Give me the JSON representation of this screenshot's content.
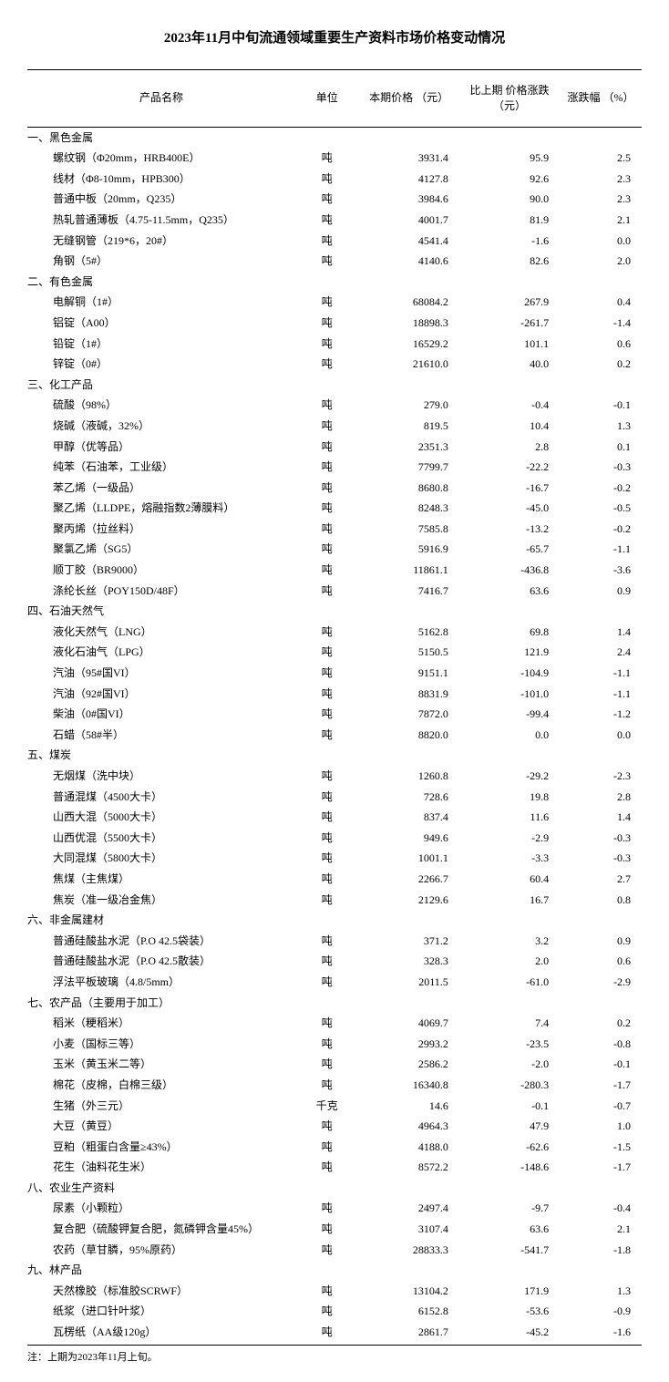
{
  "title": "2023年11月中旬流通领域重要生产资料市场价格变动情况",
  "headers": {
    "name": "产品名称",
    "unit": "单位",
    "price": "本期价格\n（元）",
    "change": "比上期\n价格涨跌\n（元）",
    "pct": "涨跌幅\n（%）"
  },
  "footnote": "注：上期为2023年11月上旬。",
  "sections": [
    {
      "title": "一、黑色金属",
      "rows": [
        {
          "name": "螺纹钢（Φ20mm，HRB400E）",
          "unit": "吨",
          "price": "3931.4",
          "change": "95.9",
          "pct": "2.5"
        },
        {
          "name": "线材（Φ8-10mm，HPB300）",
          "unit": "吨",
          "price": "4127.8",
          "change": "92.6",
          "pct": "2.3"
        },
        {
          "name": "普通中板（20mm，Q235）",
          "unit": "吨",
          "price": "3984.6",
          "change": "90.0",
          "pct": "2.3"
        },
        {
          "name": "热轧普通薄板（4.75-11.5mm，Q235）",
          "unit": "吨",
          "price": "4001.7",
          "change": "81.9",
          "pct": "2.1"
        },
        {
          "name": "无缝钢管（219*6，20#）",
          "unit": "吨",
          "price": "4541.4",
          "change": "-1.6",
          "pct": "0.0"
        },
        {
          "name": "角钢（5#）",
          "unit": "吨",
          "price": "4140.6",
          "change": "82.6",
          "pct": "2.0"
        }
      ]
    },
    {
      "title": "二、有色金属",
      "rows": [
        {
          "name": "电解铜（1#）",
          "unit": "吨",
          "price": "68084.2",
          "change": "267.9",
          "pct": "0.4"
        },
        {
          "name": "铝锭（A00）",
          "unit": "吨",
          "price": "18898.3",
          "change": "-261.7",
          "pct": "-1.4"
        },
        {
          "name": "铅锭（1#）",
          "unit": "吨",
          "price": "16529.2",
          "change": "101.1",
          "pct": "0.6"
        },
        {
          "name": "锌锭（0#）",
          "unit": "吨",
          "price": "21610.0",
          "change": "40.0",
          "pct": "0.2"
        }
      ]
    },
    {
      "title": "三、化工产品",
      "rows": [
        {
          "name": "硫酸（98%）",
          "unit": "吨",
          "price": "279.0",
          "change": "-0.4",
          "pct": "-0.1"
        },
        {
          "name": "烧碱（液碱，32%）",
          "unit": "吨",
          "price": "819.5",
          "change": "10.4",
          "pct": "1.3"
        },
        {
          "name": "甲醇（优等品）",
          "unit": "吨",
          "price": "2351.3",
          "change": "2.8",
          "pct": "0.1"
        },
        {
          "name": "纯苯（石油苯，工业级）",
          "unit": "吨",
          "price": "7799.7",
          "change": "-22.2",
          "pct": "-0.3"
        },
        {
          "name": "苯乙烯（一级品）",
          "unit": "吨",
          "price": "8680.8",
          "change": "-16.7",
          "pct": "-0.2"
        },
        {
          "name": "聚乙烯（LLDPE，熔融指数2薄膜料）",
          "unit": "吨",
          "price": "8248.3",
          "change": "-45.0",
          "pct": "-0.5"
        },
        {
          "name": "聚丙烯（拉丝料）",
          "unit": "吨",
          "price": "7585.8",
          "change": "-13.2",
          "pct": "-0.2"
        },
        {
          "name": "聚氯乙烯（SG5）",
          "unit": "吨",
          "price": "5916.9",
          "change": "-65.7",
          "pct": "-1.1"
        },
        {
          "name": "顺丁胶（BR9000）",
          "unit": "吨",
          "price": "11861.1",
          "change": "-436.8",
          "pct": "-3.6"
        },
        {
          "name": "涤纶长丝（POY150D/48F）",
          "unit": "吨",
          "price": "7416.7",
          "change": "63.6",
          "pct": "0.9"
        }
      ]
    },
    {
      "title": "四、石油天然气",
      "rows": [
        {
          "name": "液化天然气（LNG）",
          "unit": "吨",
          "price": "5162.8",
          "change": "69.8",
          "pct": "1.4"
        },
        {
          "name": "液化石油气（LPG）",
          "unit": "吨",
          "price": "5150.5",
          "change": "121.9",
          "pct": "2.4"
        },
        {
          "name": "汽油（95#国VI）",
          "unit": "吨",
          "price": "9151.1",
          "change": "-104.9",
          "pct": "-1.1"
        },
        {
          "name": "汽油（92#国VI）",
          "unit": "吨",
          "price": "8831.9",
          "change": "-101.0",
          "pct": "-1.1"
        },
        {
          "name": "柴油（0#国VI）",
          "unit": "吨",
          "price": "7872.0",
          "change": "-99.4",
          "pct": "-1.2"
        },
        {
          "name": "石蜡（58#半）",
          "unit": "吨",
          "price": "8820.0",
          "change": "0.0",
          "pct": "0.0"
        }
      ]
    },
    {
      "title": "五、煤炭",
      "rows": [
        {
          "name": "无烟煤（洗中块）",
          "unit": "吨",
          "price": "1260.8",
          "change": "-29.2",
          "pct": "-2.3"
        },
        {
          "name": "普通混煤（4500大卡）",
          "unit": "吨",
          "price": "728.6",
          "change": "19.8",
          "pct": "2.8"
        },
        {
          "name": "山西大混（5000大卡）",
          "unit": "吨",
          "price": "837.4",
          "change": "11.6",
          "pct": "1.4"
        },
        {
          "name": "山西优混（5500大卡）",
          "unit": "吨",
          "price": "949.6",
          "change": "-2.9",
          "pct": "-0.3"
        },
        {
          "name": "大同混煤（5800大卡）",
          "unit": "吨",
          "price": "1001.1",
          "change": "-3.3",
          "pct": "-0.3"
        },
        {
          "name": "焦煤（主焦煤）",
          "unit": "吨",
          "price": "2266.7",
          "change": "60.4",
          "pct": "2.7"
        },
        {
          "name": "焦炭（准一级冶金焦）",
          "unit": "吨",
          "price": "2129.6",
          "change": "16.7",
          "pct": "0.8"
        }
      ]
    },
    {
      "title": "六、非金属建材",
      "rows": [
        {
          "name": "普通硅酸盐水泥（P.O 42.5袋装）",
          "unit": "吨",
          "price": "371.2",
          "change": "3.2",
          "pct": "0.9"
        },
        {
          "name": "普通硅酸盐水泥（P.O 42.5散装）",
          "unit": "吨",
          "price": "328.3",
          "change": "2.0",
          "pct": "0.6"
        },
        {
          "name": "浮法平板玻璃（4.8/5mm）",
          "unit": "吨",
          "price": "2011.5",
          "change": "-61.0",
          "pct": "-2.9"
        }
      ]
    },
    {
      "title": "七、农产品（主要用于加工）",
      "rows": [
        {
          "name": "稻米（粳稻米）",
          "unit": "吨",
          "price": "4069.7",
          "change": "7.4",
          "pct": "0.2"
        },
        {
          "name": "小麦（国标三等）",
          "unit": "吨",
          "price": "2993.2",
          "change": "-23.5",
          "pct": "-0.8"
        },
        {
          "name": "玉米（黄玉米二等）",
          "unit": "吨",
          "price": "2586.2",
          "change": "-2.0",
          "pct": "-0.1"
        },
        {
          "name": "棉花（皮棉，白棉三级）",
          "unit": "吨",
          "price": "16340.8",
          "change": "-280.3",
          "pct": "-1.7"
        },
        {
          "name": "生猪（外三元）",
          "unit": "千克",
          "price": "14.6",
          "change": "-0.1",
          "pct": "-0.7"
        },
        {
          "name": "大豆（黄豆）",
          "unit": "吨",
          "price": "4964.3",
          "change": "47.9",
          "pct": "1.0"
        },
        {
          "name": "豆粕（粗蛋白含量≥43%）",
          "unit": "吨",
          "price": "4188.0",
          "change": "-62.6",
          "pct": "-1.5"
        },
        {
          "name": "花生（油料花生米）",
          "unit": "吨",
          "price": "8572.2",
          "change": "-148.6",
          "pct": "-1.7"
        }
      ]
    },
    {
      "title": "八、农业生产资料",
      "rows": [
        {
          "name": "尿素（小颗粒）",
          "unit": "吨",
          "price": "2497.4",
          "change": "-9.7",
          "pct": "-0.4"
        },
        {
          "name": "复合肥（硫酸钾复合肥，氮磷钾含量45%）",
          "unit": "吨",
          "price": "3107.4",
          "change": "63.6",
          "pct": "2.1"
        },
        {
          "name": "农药（草甘膦，95%原药）",
          "unit": "吨",
          "price": "28833.3",
          "change": "-541.7",
          "pct": "-1.8"
        }
      ]
    },
    {
      "title": "九、林产品",
      "rows": [
        {
          "name": "天然橡胶（标准胶SCRWF）",
          "unit": "吨",
          "price": "13104.2",
          "change": "171.9",
          "pct": "1.3"
        },
        {
          "name": "纸浆（进口针叶浆）",
          "unit": "吨",
          "price": "6152.8",
          "change": "-53.6",
          "pct": "-0.9"
        },
        {
          "name": "瓦楞纸（AA级120g）",
          "unit": "吨",
          "price": "2861.7",
          "change": "-45.2",
          "pct": "-1.6"
        }
      ]
    }
  ]
}
